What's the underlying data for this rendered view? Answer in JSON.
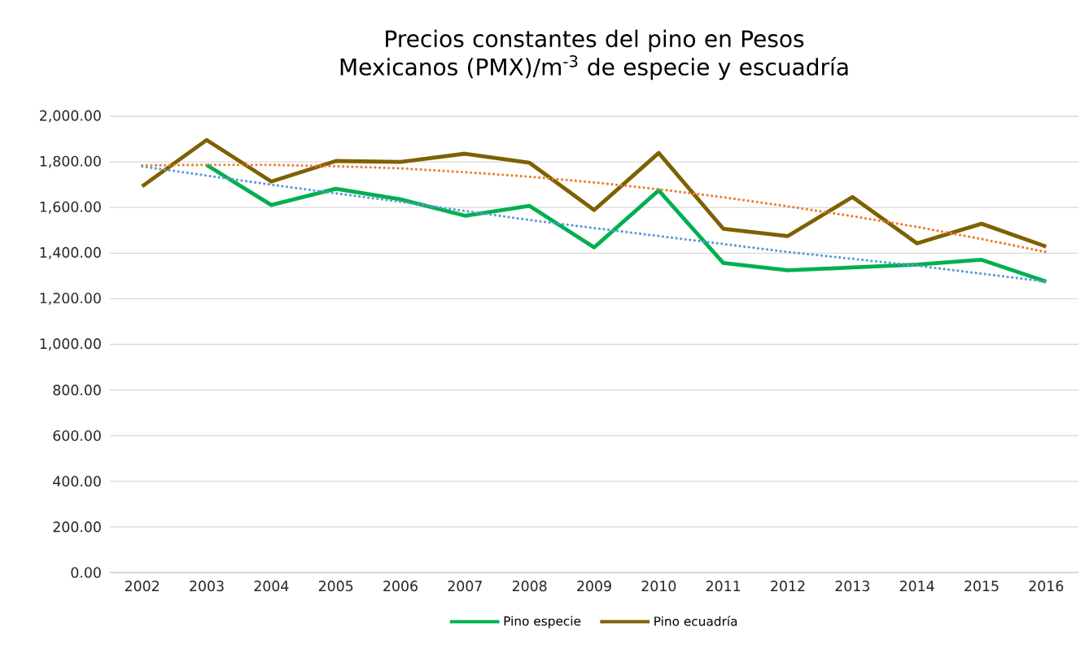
{
  "chart_data": {
    "type": "line",
    "title": "Precios constantes del pino en Pesos Mexicanos (PMX)/m$^{-3}$ de especie y escuadría",
    "categories": [
      "2002",
      "2003",
      "2004",
      "2005",
      "2006",
      "2007",
      "2008",
      "2009",
      "2010",
      "2011",
      "2012",
      "2013",
      "2014",
      "2015",
      "2016"
    ],
    "series": [
      {
        "name": "Pino especie",
        "color": "#00b050",
        "values": [
          null,
          1786,
          1611,
          1682,
          1636,
          1564,
          1607,
          1425,
          1675,
          1357,
          1325,
          1337,
          1350,
          1371,
          1275
        ]
      },
      {
        "name": "Pino ecuadría",
        "color": "#7f6000",
        "values": [
          1693,
          1896,
          1714,
          1804,
          1800,
          1836,
          1796,
          1589,
          1839,
          1507,
          1475,
          1646,
          1443,
          1529,
          1429
        ]
      },
      {
        "color": "#5b9bd5",
        "line_style": "dotted",
        "values": [
          1780,
          1740,
          1700,
          1662,
          1625,
          1585,
          1545,
          1510,
          1475,
          1440,
          1405,
          1375,
          1345,
          1310,
          1275
        ]
      },
      {
        "color": "#ed7d31",
        "line_style": "dotted",
        "values": [
          1785,
          1787,
          1787,
          1781,
          1772,
          1755,
          1735,
          1710,
          1680,
          1645,
          1605,
          1562,
          1515,
          1462,
          1405
        ]
      }
    ],
    "ylim": [
      0,
      2000
    ],
    "yticks": [
      {
        "value": 0,
        "label": "0.00"
      },
      {
        "value": 200,
        "label": "200.00"
      },
      {
        "value": 400,
        "label": "400.00"
      },
      {
        "value": 600,
        "label": "600.00"
      },
      {
        "value": 800,
        "label": "800.00"
      },
      {
        "value": 1000,
        "label": "1,000.00"
      },
      {
        "value": 1200,
        "label": "1,200.00"
      },
      {
        "value": 1400,
        "label": "1,400.00"
      },
      {
        "value": 1600,
        "label": "1,600.00"
      },
      {
        "value": 1800,
        "label": "1,800.00"
      },
      {
        "value": 2000,
        "label": "2,000.00"
      }
    ],
    "grid": "y",
    "legend": "bottom",
    "marker": "none",
    "line_style": "solid"
  }
}
